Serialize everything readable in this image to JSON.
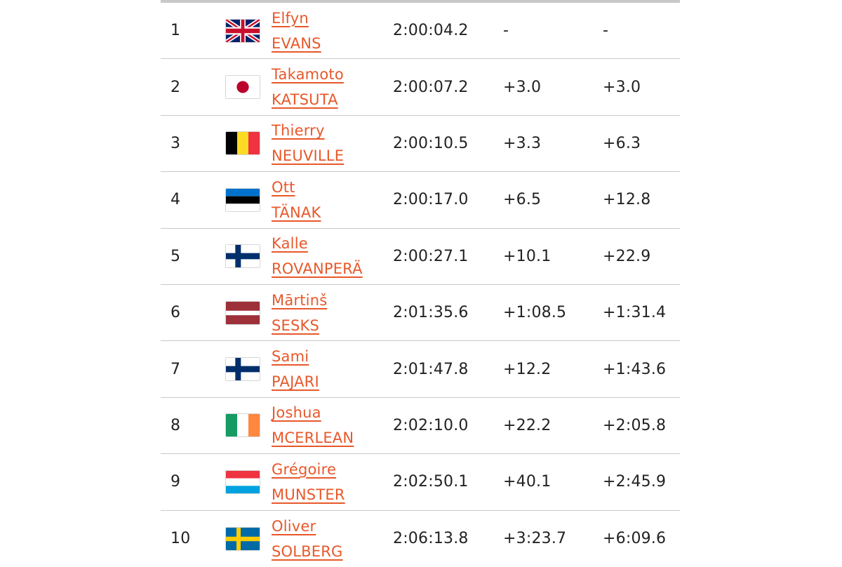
{
  "results": [
    {
      "pos": "1",
      "flag": "gb-flag-icon",
      "first": "Elfyn",
      "last": "EVANS",
      "time": "2:00:04.2",
      "diff_prev": "-",
      "diff_first": "-"
    },
    {
      "pos": "2",
      "flag": "jp-flag-icon",
      "first": "Takamoto",
      "last": "KATSUTA",
      "time": "2:00:07.2",
      "diff_prev": "+3.0",
      "diff_first": "+3.0"
    },
    {
      "pos": "3",
      "flag": "be-flag-icon",
      "first": "Thierry",
      "last": "NEUVILLE",
      "time": "2:00:10.5",
      "diff_prev": "+3.3",
      "diff_first": "+6.3"
    },
    {
      "pos": "4",
      "flag": "ee-flag-icon",
      "first": "Ott",
      "last": "TÄNAK",
      "time": "2:00:17.0",
      "diff_prev": "+6.5",
      "diff_first": "+12.8"
    },
    {
      "pos": "5",
      "flag": "fi-flag-icon",
      "first": "Kalle",
      "last": "ROVANPERÄ",
      "time": "2:00:27.1",
      "diff_prev": "+10.1",
      "diff_first": "+22.9"
    },
    {
      "pos": "6",
      "flag": "lv-flag-icon",
      "first": "Mārtinš",
      "last": "SESKS",
      "time": "2:01:35.6",
      "diff_prev": "+1:08.5",
      "diff_first": "+1:31.4"
    },
    {
      "pos": "7",
      "flag": "fi-flag-icon",
      "first": "Sami",
      "last": "PAJARI",
      "time": "2:01:47.8",
      "diff_prev": "+12.2",
      "diff_first": "+1:43.6"
    },
    {
      "pos": "8",
      "flag": "ie-flag-icon",
      "first": "Joshua",
      "last": "MCERLEAN",
      "time": "2:02:10.0",
      "diff_prev": "+22.2",
      "diff_first": "+2:05.8"
    },
    {
      "pos": "9",
      "flag": "lu-flag-icon",
      "first": "Grégoire",
      "last": "MUNSTER",
      "time": "2:02:50.1",
      "diff_prev": "+40.1",
      "diff_first": "+2:45.9"
    },
    {
      "pos": "10",
      "flag": "se-flag-icon",
      "first": "Oliver",
      "last": "SOLBERG",
      "time": "2:06:13.8",
      "diff_prev": "+3:23.7",
      "diff_first": "+6:09.6"
    }
  ],
  "colors": {
    "link": "#e8582a",
    "divider": "#c9c9c9",
    "text": "#222222"
  }
}
